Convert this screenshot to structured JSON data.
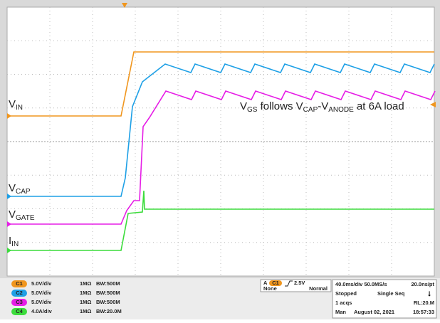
{
  "waveform_labels": [
    {
      "main": "V",
      "sub": "IN"
    },
    {
      "main": "V",
      "sub": "CAP"
    },
    {
      "main": "V",
      "sub": "GATE"
    },
    {
      "main": "I",
      "sub": "IN"
    }
  ],
  "annotation": [
    {
      "text": "V",
      "sub": false
    },
    {
      "text": "GS",
      "sub": true
    },
    {
      "text": " follows V",
      "sub": false
    },
    {
      "text": "CAP",
      "sub": true
    },
    {
      "text": "-V",
      "sub": false
    },
    {
      "text": "ANODE",
      "sub": true
    },
    {
      "text": " at 6A load",
      "sub": false
    }
  ],
  "channels": [
    {
      "badge": "C1",
      "scale": "5.0V/div",
      "impedance": "1MΩ",
      "bandwidth": "BW:500M"
    },
    {
      "badge": "C2",
      "scale": "5.0V/div",
      "impedance": "1MΩ",
      "bandwidth": "BW:500M"
    },
    {
      "badge": "C3",
      "scale": "5.0V/div",
      "impedance": "1MΩ",
      "bandwidth": "BW:500M"
    },
    {
      "badge": "C4",
      "scale": "4.0A/div",
      "impedance": "1MΩ",
      "bandwidth": "BW:20.0M"
    }
  ],
  "trigger": {
    "label": "A",
    "source": "C1",
    "level": "2.5V",
    "coupling": "None",
    "mode": "Normal"
  },
  "acquisition": {
    "timebase": "40.0ms/div 50.0MS/s",
    "resolution": "20.0ns/pt",
    "state": "Stopped",
    "sequence": "Single Seq",
    "acqs": "1 acqs",
    "record": "RL:20.M",
    "mode": "Man",
    "date": "August 02, 2021",
    "time": "18:57:33"
  }
}
